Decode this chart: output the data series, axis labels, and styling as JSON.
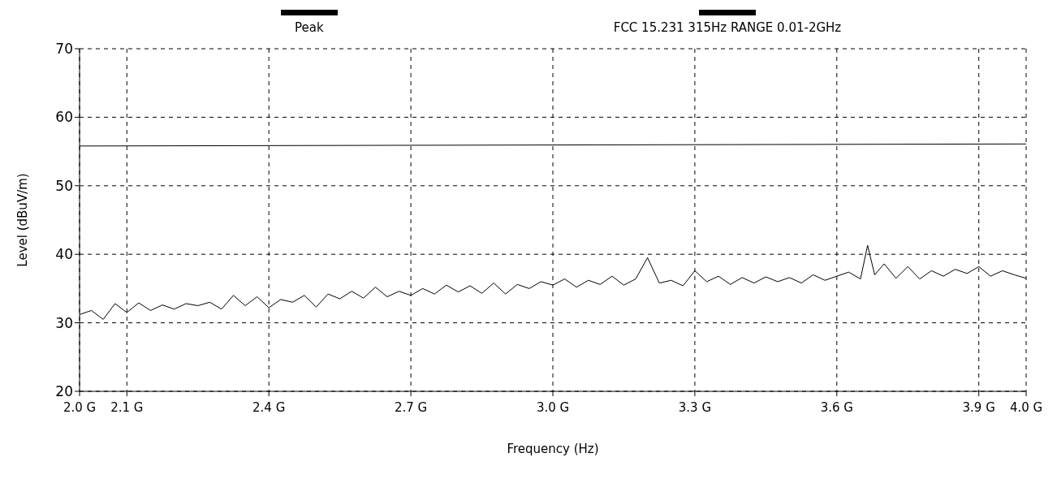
{
  "chart_data": {
    "type": "line",
    "xlabel": "Frequency (Hz)",
    "ylabel": "Level (dBuV/m)",
    "xlim": [
      2.0,
      4.0
    ],
    "xticks": [
      {
        "value": 2.0,
        "label": "2.0 G"
      },
      {
        "value": 2.1,
        "label": "2.1 G"
      },
      {
        "value": 2.4,
        "label": "2.4 G"
      },
      {
        "value": 2.7,
        "label": "2.7 G"
      },
      {
        "value": 3.0,
        "label": "3.0 G"
      },
      {
        "value": 3.3,
        "label": "3.3 G"
      },
      {
        "value": 3.6,
        "label": "3.6 G"
      },
      {
        "value": 3.9,
        "label": "3.9 G"
      },
      {
        "value": 4.0,
        "label": "4.0 G"
      }
    ],
    "ylim": [
      20,
      70
    ],
    "yticks": [
      20,
      30,
      40,
      50,
      60,
      70
    ],
    "grid": true,
    "legend": "top",
    "marker": "none",
    "line_style": "solid",
    "series": [
      {
        "name": "Peak",
        "color": "#000000",
        "x": [
          2.0,
          2.025,
          2.05,
          2.075,
          2.1,
          2.125,
          2.15,
          2.175,
          2.2,
          2.225,
          2.25,
          2.275,
          2.3,
          2.325,
          2.35,
          2.375,
          2.4,
          2.425,
          2.45,
          2.475,
          2.5,
          2.525,
          2.55,
          2.575,
          2.6,
          2.625,
          2.65,
          2.675,
          2.7,
          2.725,
          2.75,
          2.775,
          2.8,
          2.825,
          2.85,
          2.875,
          2.9,
          2.925,
          2.95,
          2.975,
          3.0,
          3.025,
          3.05,
          3.075,
          3.1,
          3.125,
          3.15,
          3.175,
          3.2,
          3.225,
          3.25,
          3.275,
          3.3,
          3.325,
          3.35,
          3.375,
          3.4,
          3.425,
          3.45,
          3.475,
          3.5,
          3.525,
          3.55,
          3.575,
          3.6,
          3.625,
          3.65,
          3.665,
          3.68,
          3.7,
          3.725,
          3.75,
          3.775,
          3.8,
          3.825,
          3.85,
          3.875,
          3.9,
          3.925,
          3.95,
          3.975,
          4.0
        ],
        "values": [
          31.2,
          31.8,
          30.5,
          32.8,
          31.5,
          32.9,
          31.8,
          32.6,
          32.0,
          32.8,
          32.5,
          33.0,
          32.0,
          34.0,
          32.5,
          33.8,
          32.2,
          33.4,
          33.0,
          34.0,
          32.3,
          34.2,
          33.5,
          34.6,
          33.6,
          35.2,
          33.8,
          34.6,
          34.0,
          35.0,
          34.2,
          35.5,
          34.5,
          35.4,
          34.3,
          35.8,
          34.2,
          35.6,
          35.0,
          36.0,
          35.5,
          36.4,
          35.2,
          36.2,
          35.6,
          36.8,
          35.5,
          36.4,
          39.5,
          35.8,
          36.2,
          35.4,
          37.6,
          36.0,
          36.8,
          35.6,
          36.6,
          35.8,
          36.7,
          36.0,
          36.6,
          35.8,
          37.0,
          36.2,
          36.8,
          37.4,
          36.4,
          41.3,
          37.0,
          38.6,
          36.5,
          38.2,
          36.4,
          37.6,
          36.8,
          37.8,
          37.2,
          38.2,
          36.8,
          37.6,
          37.0,
          36.5
        ]
      },
      {
        "name": "FCC 15.231 315Hz RANGE 0.01-2GHz",
        "color": "#000000",
        "x": [
          2.0,
          4.0
        ],
        "values": [
          55.8,
          56.1
        ]
      }
    ]
  }
}
